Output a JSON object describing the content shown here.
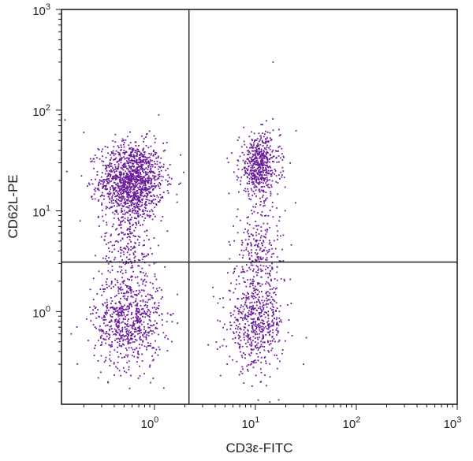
{
  "chart_data": {
    "type": "scatter",
    "x_scale": "log",
    "y_scale": "log",
    "xlabel": "CD3ε-FITC",
    "ylabel": "CD62L-PE",
    "xlim": [
      0.12,
      1000
    ],
    "ylim": [
      0.12,
      1000
    ],
    "x_ticks": [
      {
        "value": 1,
        "base": "10",
        "exp": "0"
      },
      {
        "value": 10,
        "base": "10",
        "exp": "1"
      },
      {
        "value": 100,
        "base": "10",
        "exp": "2"
      },
      {
        "value": 1000,
        "base": "10",
        "exp": "3"
      }
    ],
    "y_ticks": [
      {
        "value": 1,
        "base": "10",
        "exp": "0"
      },
      {
        "value": 10,
        "base": "10",
        "exp": "1"
      },
      {
        "value": 100,
        "base": "10",
        "exp": "2"
      },
      {
        "value": 1000,
        "base": "10",
        "exp": "3"
      }
    ],
    "quadrant_gates": {
      "x": 2.2,
      "y": 3.1
    },
    "point_color": "#6a1b9a",
    "populations": [
      {
        "center": [
          0.6,
          20
        ],
        "spread": [
          0.16,
          0.19
        ],
        "count": 1300
      },
      {
        "center": [
          0.55,
          0.8
        ],
        "spread": [
          0.17,
          0.23
        ],
        "count": 700
      },
      {
        "center": [
          0.55,
          4.5
        ],
        "spread": [
          0.14,
          0.25
        ],
        "count": 250
      },
      {
        "center": [
          11,
          28
        ],
        "spread": [
          0.1,
          0.16
        ],
        "count": 550
      },
      {
        "center": [
          10,
          0.75
        ],
        "spread": [
          0.14,
          0.22
        ],
        "count": 550
      },
      {
        "center": [
          11,
          4
        ],
        "spread": [
          0.12,
          0.25
        ],
        "count": 250
      }
    ],
    "outliers": [
      [
        15,
        300
      ],
      [
        0.13,
        80
      ],
      [
        0.2,
        60
      ],
      [
        30,
        0.3
      ],
      [
        32,
        0.55
      ],
      [
        25,
        12
      ],
      [
        0.15,
        0.6
      ]
    ]
  }
}
